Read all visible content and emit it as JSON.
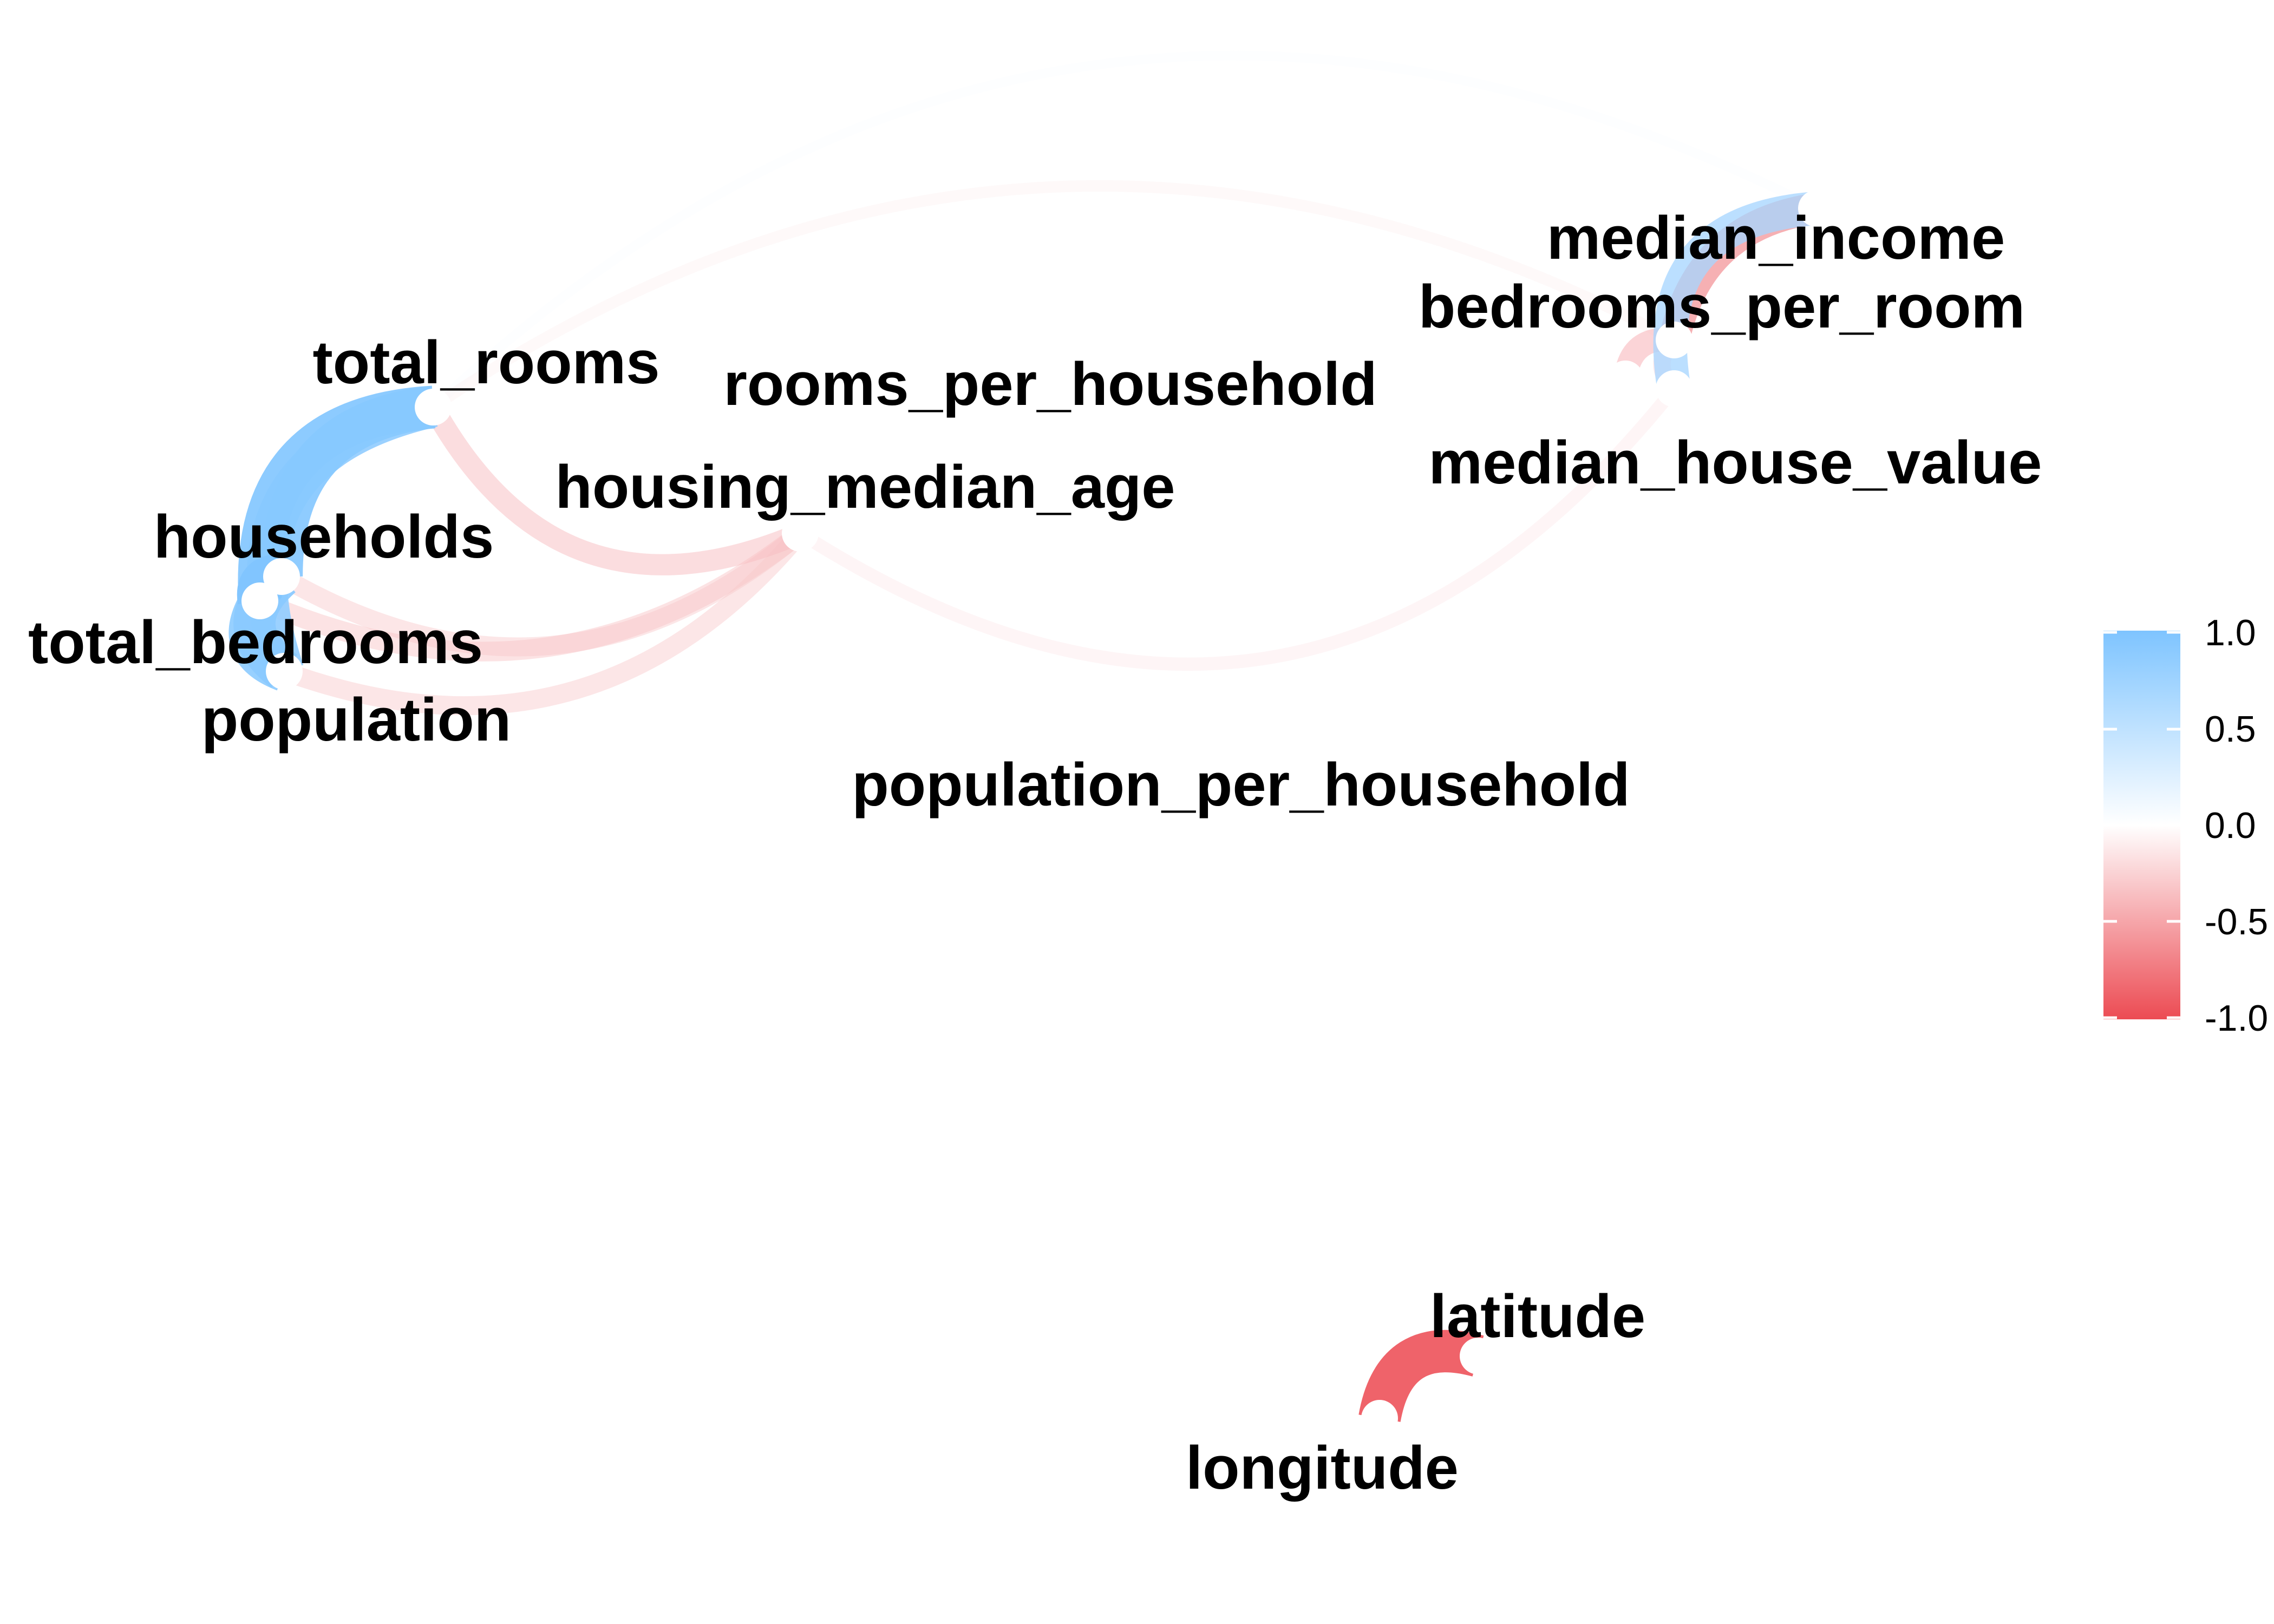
{
  "nodes": [
    {
      "id": "median_income",
      "label": "median_income"
    },
    {
      "id": "bedrooms_per_room",
      "label": "bedrooms_per_room"
    },
    {
      "id": "total_rooms",
      "label": "total_rooms"
    },
    {
      "id": "rooms_per_household",
      "label": "rooms_per_household"
    },
    {
      "id": "median_house_value",
      "label": "median_house_value"
    },
    {
      "id": "housing_median_age",
      "label": "housing_median_age"
    },
    {
      "id": "households",
      "label": "households"
    },
    {
      "id": "total_bedrooms",
      "label": "total_bedrooms"
    },
    {
      "id": "population",
      "label": "population"
    },
    {
      "id": "population_per_household",
      "label": "population_per_household"
    },
    {
      "id": "latitude",
      "label": "latitude"
    },
    {
      "id": "longitude",
      "label": "longitude"
    }
  ],
  "edges": [
    {
      "source": "total_rooms",
      "target": "households",
      "r": 0.92
    },
    {
      "source": "total_rooms",
      "target": "total_bedrooms",
      "r": 0.93
    },
    {
      "source": "total_rooms",
      "target": "population",
      "r": 0.86
    },
    {
      "source": "households",
      "target": "total_bedrooms",
      "r": 0.98
    },
    {
      "source": "households",
      "target": "population",
      "r": 0.91
    },
    {
      "source": "total_bedrooms",
      "target": "population",
      "r": 0.88
    },
    {
      "source": "latitude",
      "target": "longitude",
      "r": -0.92
    },
    {
      "source": "median_income",
      "target": "bedrooms_per_room",
      "r": -0.62
    },
    {
      "source": "median_income",
      "target": "median_house_value",
      "r": 0.69
    },
    {
      "source": "bedrooms_per_room",
      "target": "median_house_value",
      "r": -0.26
    },
    {
      "source": "bedrooms_per_room",
      "target": "rooms_per_household",
      "r": -0.42
    },
    {
      "source": "housing_median_age",
      "target": "total_rooms",
      "r": -0.36
    },
    {
      "source": "housing_median_age",
      "target": "households",
      "r": -0.3
    },
    {
      "source": "housing_median_age",
      "target": "total_bedrooms",
      "r": -0.32
    },
    {
      "source": "housing_median_age",
      "target": "population",
      "r": -0.3
    },
    {
      "source": "housing_median_age",
      "target": "median_house_value",
      "r": -0.15
    },
    {
      "source": "bedrooms_per_room",
      "target": "total_rooms",
      "r": -0.1
    },
    {
      "source": "median_income",
      "target": "total_rooms",
      "r": 0.05
    }
  ],
  "legend": {
    "ticks": [
      "1.0",
      "0.5",
      "0.0",
      "-0.5",
      "-1.0"
    ],
    "tick_values": [
      1.0,
      0.5,
      0.0,
      -0.5,
      -1.0
    ],
    "colors": {
      "positive": "#7ec4ff",
      "zero": "#ffffff",
      "negative": "#ec4b53"
    }
  }
}
